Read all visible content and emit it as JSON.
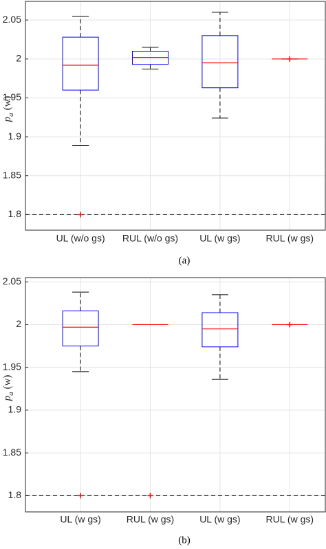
{
  "chart_data": [
    {
      "type": "box",
      "caption": "(a)",
      "y_label": {
        "symbol": "p",
        "subscript": "a",
        "unit": "(w)"
      },
      "categories": [
        "UL (w/o gs)",
        "RUL (w/o gs)",
        "UL (w gs)",
        "RUL (w gs)"
      ],
      "boxes": [
        {
          "whislo": 1.889,
          "q1": 1.96,
          "med": 1.992,
          "q3": 2.028,
          "whishi": 2.055,
          "fliers": [
            1.8
          ]
        },
        {
          "whislo": 1.987,
          "q1": 1.993,
          "med": 2.002,
          "q3": 2.01,
          "whishi": 2.015,
          "fliers": []
        },
        {
          "whislo": 1.924,
          "q1": 1.963,
          "med": 1.995,
          "q3": 2.03,
          "whishi": 2.06,
          "fliers": []
        },
        {
          "whislo": 2.0,
          "q1": 2.0,
          "med": 2.0,
          "q3": 2.0,
          "whishi": 2.0,
          "fliers": [
            2.0
          ]
        }
      ],
      "ylim": [
        1.78,
        2.074
      ],
      "yticks": [
        1.8,
        1.85,
        1.9,
        1.95,
        2,
        2.05
      ],
      "reference_line": 1.8,
      "grid": true,
      "colors": {
        "box": "#0000ff",
        "median": "#ff0000",
        "whisker": "#000000",
        "flier": "#ff0000"
      }
    },
    {
      "type": "box",
      "caption": "(b)",
      "y_label": {
        "symbol": "p",
        "subscript": "a",
        "unit": "(w)"
      },
      "categories": [
        "UL (w gs)",
        "RUL (w gs)",
        "UL (w gs)",
        "RUL (w gs)"
      ],
      "boxes": [
        {
          "whislo": 1.945,
          "q1": 1.975,
          "med": 1.997,
          "q3": 2.016,
          "whishi": 2.038,
          "fliers": [
            1.8
          ]
        },
        {
          "whislo": 2.0,
          "q1": 2.0,
          "med": 2.0,
          "q3": 2.0,
          "whishi": 2.0,
          "fliers": [
            1.8
          ]
        },
        {
          "whislo": 1.936,
          "q1": 1.974,
          "med": 1.995,
          "q3": 2.014,
          "whishi": 2.035,
          "fliers": []
        },
        {
          "whislo": 2.0,
          "q1": 2.0,
          "med": 2.0,
          "q3": 2.0,
          "whishi": 2.0,
          "fliers": [
            2.0
          ]
        }
      ],
      "ylim": [
        1.781,
        2.055
      ],
      "yticks": [
        1.8,
        1.85,
        1.9,
        1.95,
        2,
        2.05
      ],
      "reference_line": 1.8,
      "grid": true,
      "colors": {
        "box": "#0000ff",
        "median": "#ff0000",
        "whisker": "#000000",
        "flier": "#ff0000"
      }
    }
  ]
}
